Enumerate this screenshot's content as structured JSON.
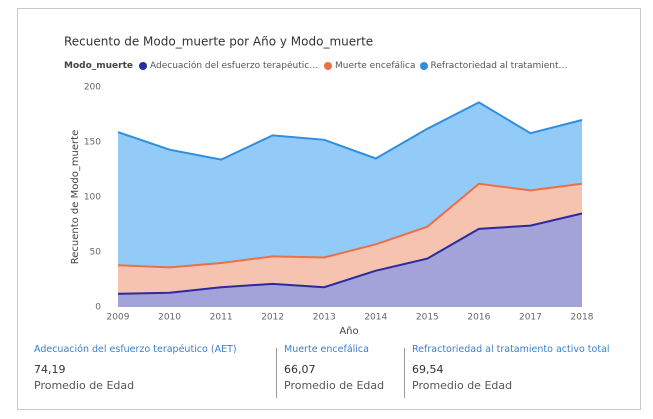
{
  "chart_data": {
    "type": "stacked_area",
    "title": "Recuento de Modo_muerte por Año y Modo_muerte",
    "legend_title": "Modo_muerte",
    "x_label": "Año",
    "y_label": "Recuento de Modo_muerte",
    "categories": [
      "2009",
      "2010",
      "2011",
      "2012",
      "2013",
      "2014",
      "2015",
      "2016",
      "2017",
      "2018"
    ],
    "series": [
      {
        "name": "Adecuación del esfuerzo terapéutico (AET)",
        "color": "#2b2b9e",
        "fill": "#a3a3d9",
        "values": [
          12,
          13,
          18,
          21,
          18,
          33,
          44,
          71,
          74,
          85
        ]
      },
      {
        "name": "Muerte encefálica",
        "color": "#e8714a",
        "fill": "#f5c3b0",
        "values": [
          26,
          23,
          22,
          25,
          27,
          24,
          29,
          41,
          32,
          27
        ]
      },
      {
        "name": "Refractoriedad al tratamiento activo total",
        "color": "#2f8ee0",
        "fill": "#93cbf8",
        "values": [
          121,
          107,
          94,
          110,
          107,
          78,
          89,
          74,
          52,
          58
        ]
      }
    ],
    "ylim": [
      0,
      200
    ],
    "yticks": [
      0,
      50,
      100,
      150,
      200
    ],
    "grid": false
  },
  "cards": [
    {
      "value": "74,19",
      "label": "Promedio de Edad"
    },
    {
      "value": "66,07",
      "label": "Promedio de Edad"
    },
    {
      "value": "69,54",
      "label": "Promedio de Edad"
    }
  ]
}
